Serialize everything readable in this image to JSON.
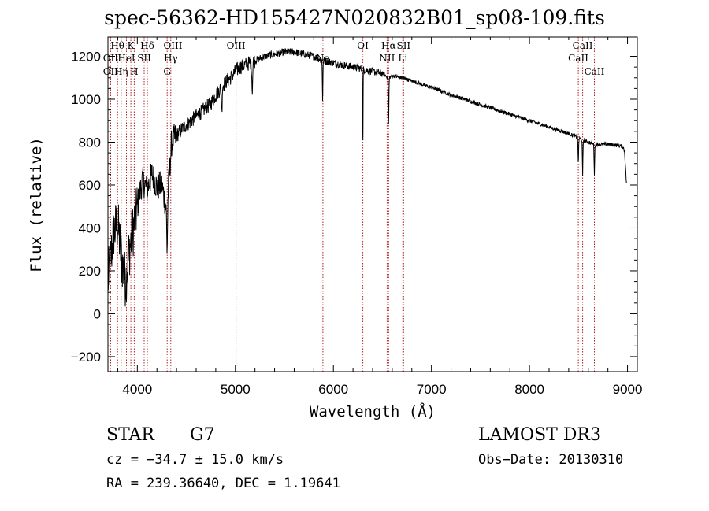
{
  "chart_data": {
    "type": "line",
    "title": "spec-56362-HD155427N020832B01_sp08-109.fits",
    "xlabel": "Wavelength (Å)",
    "ylabel": "Flux (relative)",
    "xlim": [
      3700,
      9100
    ],
    "ylim": [
      -270,
      1290
    ],
    "xticks": [
      4000,
      5000,
      6000,
      7000,
      8000,
      9000
    ],
    "yticks": [
      -200,
      0,
      200,
      400,
      600,
      800,
      1000,
      1200
    ],
    "series": [
      {
        "name": "spectrum",
        "x": [
          3700,
          3760,
          3800,
          3840,
          3880,
          3920,
          3960,
          4000,
          4050,
          4100,
          4150,
          4200,
          4250,
          4300,
          4350,
          4400,
          4450,
          4500,
          4550,
          4600,
          4650,
          4700,
          4750,
          4800,
          4850,
          4900,
          4950,
          5000,
          5050,
          5100,
          5150,
          5200,
          5300,
          5400,
          5500,
          5600,
          5700,
          5800,
          5890,
          5950,
          6000,
          6100,
          6200,
          6300,
          6400,
          6500,
          6563,
          6600,
          6700,
          6800,
          6900,
          7000,
          7200,
          7400,
          7600,
          7800,
          8000,
          8200,
          8400,
          8500,
          8540,
          8600,
          8662,
          8700,
          8800,
          8900,
          8950,
          8970,
          8990
        ],
        "y": [
          150,
          380,
          420,
          250,
          150,
          300,
          400,
          500,
          620,
          580,
          650,
          590,
          600,
          480,
          800,
          830,
          860,
          880,
          900,
          920,
          940,
          960,
          980,
          1020,
          1050,
          1080,
          1100,
          1130,
          1150,
          1160,
          1170,
          1180,
          1200,
          1210,
          1220,
          1220,
          1210,
          1200,
          1180,
          1175,
          1170,
          1160,
          1150,
          1140,
          1130,
          1120,
          1100,
          1110,
          1100,
          1085,
          1070,
          1055,
          1020,
          990,
          960,
          930,
          900,
          870,
          840,
          820,
          810,
          800,
          790,
          790,
          790,
          785,
          780,
          760,
          600
        ]
      }
    ],
    "line_features": [
      {
        "label": "Hθ",
        "wavelength": 3798
      },
      {
        "label": "K",
        "wavelength": 3934
      },
      {
        "label": "Hδ",
        "wavelength": 4102
      },
      {
        "label": "OIII",
        "wavelength": 4363
      },
      {
        "label": "OIII",
        "wavelength": 5007
      },
      {
        "label": "OI",
        "wavelength": 6300
      },
      {
        "label": "Hα",
        "wavelength": 6563
      },
      {
        "label": "SII",
        "wavelength": 6716
      },
      {
        "label": "CaII",
        "wavelength": 8542
      },
      {
        "label": "OII",
        "wavelength": 3727
      },
      {
        "label": "HeI",
        "wavelength": 3889
      },
      {
        "label": "SII",
        "wavelength": 4070
      },
      {
        "label": "Hγ",
        "wavelength": 4341
      },
      {
        "label": "Na",
        "wavelength": 5893
      },
      {
        "label": "NII",
        "wavelength": 6548
      },
      {
        "label": "Li",
        "wavelength": 6708
      },
      {
        "label": "CaII",
        "wavelength": 8498
      },
      {
        "label": "OII",
        "wavelength": 3727
      },
      {
        "label": "Hη",
        "wavelength": 3835
      },
      {
        "label": "H",
        "wavelength": 3968
      },
      {
        "label": "G",
        "wavelength": 4304
      },
      {
        "label": "CaII",
        "wavelength": 8662
      }
    ]
  },
  "object_label": "STAR",
  "subclass": "G7",
  "survey": "LAMOST DR3",
  "redshift_text": "cz = −34.7 ± 15.0 km/s",
  "obs_date_text": "Obs−Date: 20130310",
  "coords_text": "RA = 239.36640, DEC =    1.19641"
}
